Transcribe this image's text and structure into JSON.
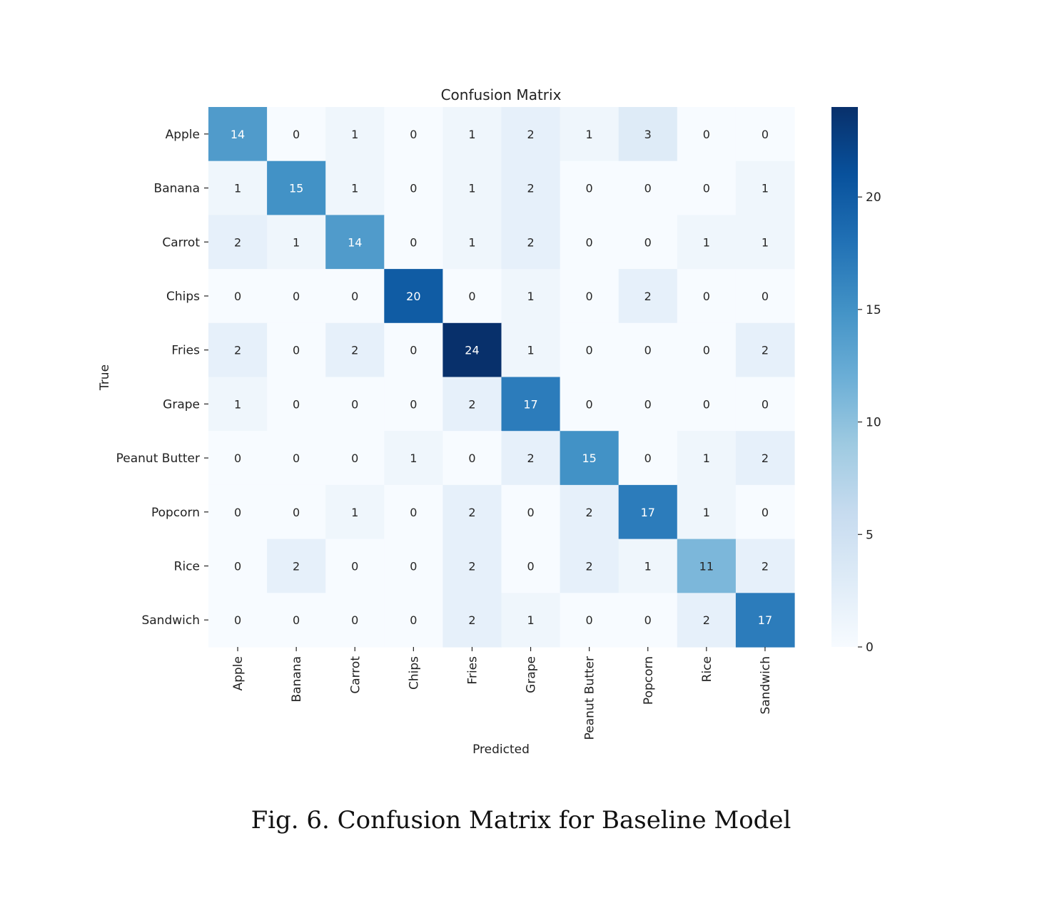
{
  "chart_data": {
    "type": "heatmap",
    "title": "Confusion Matrix",
    "xlabel": "Predicted",
    "ylabel": "True",
    "x_categories": [
      "Apple",
      "Banana",
      "Carrot",
      "Chips",
      "Fries",
      "Grape",
      "Peanut Butter",
      "Popcorn",
      "Rice",
      "Sandwich"
    ],
    "y_categories": [
      "Apple",
      "Banana",
      "Carrot",
      "Chips",
      "Fries",
      "Grape",
      "Peanut Butter",
      "Popcorn",
      "Rice",
      "Sandwich"
    ],
    "values": [
      [
        14,
        0,
        1,
        0,
        1,
        2,
        1,
        3,
        0,
        0
      ],
      [
        1,
        15,
        1,
        0,
        1,
        2,
        0,
        0,
        0,
        1
      ],
      [
        2,
        1,
        14,
        0,
        1,
        2,
        0,
        0,
        1,
        1
      ],
      [
        0,
        0,
        0,
        20,
        0,
        1,
        0,
        2,
        0,
        0
      ],
      [
        2,
        0,
        2,
        0,
        24,
        1,
        0,
        0,
        0,
        2
      ],
      [
        1,
        0,
        0,
        0,
        2,
        17,
        0,
        0,
        0,
        0
      ],
      [
        0,
        0,
        0,
        1,
        0,
        2,
        15,
        0,
        1,
        2
      ],
      [
        0,
        0,
        1,
        0,
        2,
        0,
        2,
        17,
        1,
        0
      ],
      [
        0,
        2,
        0,
        0,
        2,
        0,
        2,
        1,
        11,
        2
      ],
      [
        0,
        0,
        0,
        0,
        2,
        1,
        0,
        0,
        2,
        17
      ]
    ],
    "colorbar": {
      "range": [
        0,
        24
      ],
      "ticks": [
        0,
        5,
        10,
        15,
        20
      ]
    },
    "colormap": "Blues",
    "colors": {
      "low": "#f7fbff",
      "high": "#08306b"
    },
    "grid": false
  },
  "caption": "Fig. 6.  Confusion Matrix for Baseline Model"
}
